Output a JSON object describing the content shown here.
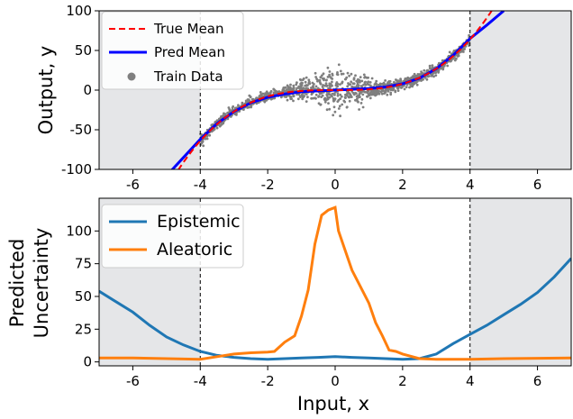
{
  "colors": {
    "true_mean": "#ff0000",
    "pred_mean": "#0000ff",
    "train_data": "#7f7f7f",
    "epistemic": "#1f77b4",
    "aleatoric": "#ff7f0e",
    "ood_shade": "#e5e6e8"
  },
  "chart_data": [
    {
      "type": "line",
      "xlabel": "Input, x",
      "ylabel": "Output, y",
      "xlim": [
        -7,
        7
      ],
      "ylim": [
        -100,
        100
      ],
      "xticks": [
        -6,
        -4,
        -2,
        0,
        2,
        4,
        6
      ],
      "yticks": [
        100,
        50,
        0,
        -50,
        -100
      ],
      "ytick_labels": [
        "100",
        "50",
        "0",
        "-50",
        "-100"
      ],
      "shaded_x_ranges": [
        [
          -7,
          -4
        ],
        [
          4,
          7
        ]
      ],
      "vlines": [
        -4,
        4
      ],
      "legend_position": "top-left",
      "series": [
        {
          "name": "True Mean",
          "style": "dashed",
          "function": "y = x^3",
          "x_range": [
            -7,
            7
          ]
        },
        {
          "name": "Pred Mean",
          "style": "solid",
          "x": [
            -5,
            -4.5,
            -4,
            -3.5,
            -3,
            -2.5,
            -2,
            -1.5,
            -1,
            -0.5,
            0,
            0.5,
            1,
            1.5,
            2,
            2.5,
            3,
            3.5,
            4,
            4.5,
            5
          ],
          "y": [
            -108,
            -85,
            -62,
            -42,
            -27,
            -16,
            -9,
            -5,
            -2,
            -1,
            0,
            1,
            2,
            4,
            8,
            15,
            27,
            44,
            65,
            82,
            100
          ]
        },
        {
          "name": "Train Data",
          "style": "scatter",
          "x_range": [
            -4,
            4
          ],
          "noise_description": "y = x^3 + noise, noise largest near x = 0"
        }
      ]
    },
    {
      "type": "line",
      "xlabel": "Input, x",
      "ylabel": "Predicted Uncertainty",
      "xlim": [
        -7,
        7
      ],
      "ylim": [
        -3,
        125
      ],
      "xticks": [
        -6,
        -4,
        -2,
        0,
        2,
        4,
        6
      ],
      "yticks": [
        0,
        25,
        50,
        75,
        100
      ],
      "shaded_x_ranges": [
        [
          -7,
          -4
        ],
        [
          4,
          7
        ]
      ],
      "vlines": [
        -4,
        4
      ],
      "legend_position": "top-left",
      "series": [
        {
          "name": "Epistemic",
          "x": [
            -7,
            -6.5,
            -6,
            -5.5,
            -5,
            -4.5,
            -4,
            -3.5,
            -3,
            -2.5,
            -2,
            -1.5,
            -1,
            -0.5,
            0,
            0.5,
            1,
            1.5,
            2,
            2.5,
            3,
            3.5,
            4,
            4.5,
            5,
            5.5,
            6,
            6.5,
            7
          ],
          "y": [
            54,
            46,
            38,
            28,
            19,
            13,
            8,
            5,
            3.5,
            2.5,
            2,
            2.5,
            3,
            3.5,
            4,
            3.5,
            3,
            2.5,
            2,
            2.5,
            6,
            14,
            21,
            28,
            36,
            44,
            53,
            65,
            79
          ]
        },
        {
          "name": "Aleatoric",
          "x": [
            -7,
            -6,
            -5,
            -4,
            -3.5,
            -3,
            -2.5,
            -2,
            -1.8,
            -1.5,
            -1.2,
            -1,
            -0.8,
            -0.6,
            -0.4,
            -0.2,
            0,
            0.1,
            0.3,
            0.5,
            0.8,
            1,
            1.2,
            1.4,
            1.6,
            1.8,
            2,
            2.5,
            3,
            4,
            5,
            6,
            7
          ],
          "y": [
            3,
            3,
            2.5,
            2,
            4,
            6,
            7,
            7.5,
            8,
            15,
            20,
            35,
            55,
            90,
            112,
            116,
            118,
            100,
            85,
            70,
            55,
            45,
            30,
            20,
            9,
            8,
            6,
            2.5,
            2,
            2,
            2.5,
            2.8,
            3
          ]
        }
      ]
    }
  ]
}
